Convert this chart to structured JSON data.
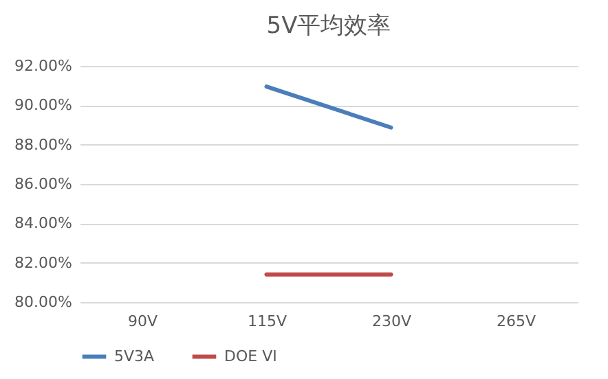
{
  "chart_data": {
    "type": "line",
    "title": "5V平均效率",
    "categories": [
      "90V",
      "115V",
      "230V",
      "265V"
    ],
    "series": [
      {
        "name": "5V3A",
        "color": "#4a7ebb",
        "values": [
          null,
          90.95,
          88.87,
          null
        ]
      },
      {
        "name": "DOE VI",
        "color": "#be4b48",
        "values": [
          null,
          81.4,
          81.4,
          null
        ]
      }
    ],
    "ylim": [
      80,
      92
    ],
    "yticks": [
      {
        "value": 80,
        "label": "80.00%"
      },
      {
        "value": 82,
        "label": "82.00%"
      },
      {
        "value": 84,
        "label": "84.00%"
      },
      {
        "value": 86,
        "label": "86.00%"
      },
      {
        "value": 88,
        "label": "88.00%"
      },
      {
        "value": 90,
        "label": "90.00%"
      },
      {
        "value": 92,
        "label": "92.00%"
      }
    ],
    "grid": "y",
    "legend": "bottom",
    "marker": "none",
    "line_style": "solid"
  }
}
